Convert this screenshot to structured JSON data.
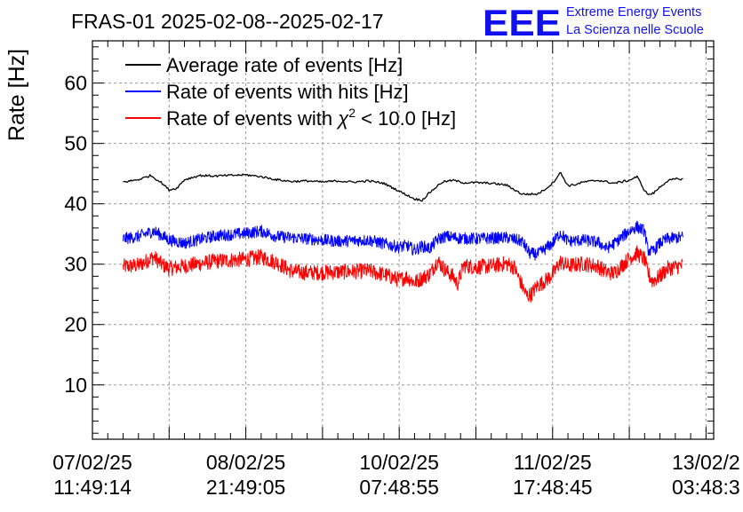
{
  "chart_data": {
    "type": "line",
    "title": "FRAS-01 2025-02-08--2025-02-17",
    "xlabel": "",
    "ylabel": "Rate [Hz]",
    "ylim": [
      1,
      67
    ],
    "y_ticks": [
      10,
      20,
      30,
      40,
      50,
      60
    ],
    "x_ticks": [
      {
        "date": "07/02/25",
        "time": "11:49:14"
      },
      {
        "date": "08/02/25",
        "time": "21:49:05"
      },
      {
        "date": "10/02/25",
        "time": "07:48:55"
      },
      {
        "date": "11/02/25",
        "time": "17:48:45"
      },
      {
        "date": "13/02/2",
        "time": "03:48:3"
      }
    ],
    "xlim": [
      0,
      4.05
    ],
    "grid": true,
    "legend": {
      "placement": "top-left",
      "entries": [
        {
          "label": "Average rate of events [Hz]",
          "color": "#000000"
        },
        {
          "label_prefix": "Rate of events with hits [Hz]",
          "color": "#0000ff"
        },
        {
          "label_prefix": "Rate of events with ",
          "chi": "χ",
          "sup": "2",
          "label_suffix": " < 10.0 [Hz]",
          "color": "#ff0000"
        }
      ]
    },
    "series": [
      {
        "name": "Average rate of events [Hz]",
        "color": "#000000",
        "noise": 0,
        "x": [
          0.2,
          0.3,
          0.38,
          0.45,
          0.5,
          0.55,
          0.6,
          0.7,
          0.8,
          1.0,
          1.1,
          1.2,
          1.3,
          1.4,
          1.5,
          1.6,
          1.7,
          1.8,
          1.9,
          2.0,
          2.1,
          2.15,
          2.2,
          2.28,
          2.35,
          2.42,
          2.5,
          2.6,
          2.7,
          2.8,
          2.9,
          2.95,
          3.0,
          3.05,
          3.1,
          3.15,
          3.2,
          3.3,
          3.4,
          3.5,
          3.55,
          3.58,
          3.6,
          3.63,
          3.66,
          3.7,
          3.75,
          3.8,
          3.85
        ],
        "y": [
          43.6,
          44.0,
          44.7,
          43.5,
          42.3,
          42.6,
          44.0,
          44.7,
          44.6,
          44.8,
          44.5,
          44.0,
          43.7,
          43.8,
          43.6,
          43.8,
          43.6,
          43.8,
          43.4,
          42.1,
          40.8,
          40.6,
          41.9,
          43.6,
          43.9,
          43.5,
          43.5,
          43.4,
          43.1,
          41.6,
          41.6,
          42.4,
          43.4,
          45.2,
          43.0,
          43.2,
          43.6,
          43.9,
          43.4,
          43.9,
          44.5,
          43.2,
          42.1,
          41.5,
          41.8,
          42.8,
          43.8,
          44.1,
          44.1
        ]
      },
      {
        "name": "Rate of events with hits [Hz]",
        "color": "#0000ff",
        "noise": 1.0,
        "x": [
          0.2,
          0.3,
          0.4,
          0.5,
          0.6,
          0.8,
          1.0,
          1.1,
          1.2,
          1.4,
          1.6,
          1.8,
          2.0,
          2.05,
          2.1,
          2.15,
          2.2,
          2.25,
          2.3,
          2.4,
          2.5,
          2.6,
          2.7,
          2.8,
          2.85,
          2.9,
          2.95,
          3.0,
          3.05,
          3.1,
          3.2,
          3.3,
          3.35,
          3.4,
          3.5,
          3.55,
          3.6,
          3.62,
          3.65,
          3.7,
          3.75,
          3.85
        ],
        "y": [
          34.2,
          34.6,
          35.5,
          34.0,
          33.5,
          34.7,
          35.1,
          35.5,
          34.6,
          34.2,
          33.8,
          34.0,
          32.8,
          33.1,
          32.3,
          33.0,
          32.6,
          34.1,
          34.6,
          34.3,
          34.2,
          34.3,
          34.4,
          33.8,
          31.8,
          31.6,
          32.5,
          33.5,
          35.2,
          33.8,
          34.0,
          33.6,
          32.6,
          33.4,
          35.5,
          36.2,
          35.5,
          32.4,
          32.0,
          33.5,
          34.2,
          34.5
        ]
      },
      {
        "name": "Rate of events with chi2 < 10.0 [Hz]",
        "color": "#ff0000",
        "noise": 1.3,
        "x": [
          0.2,
          0.3,
          0.4,
          0.45,
          0.5,
          0.6,
          0.8,
          1.0,
          1.1,
          1.2,
          1.3,
          1.4,
          1.6,
          1.8,
          1.9,
          2.0,
          2.05,
          2.1,
          2.15,
          2.2,
          2.25,
          2.3,
          2.35,
          2.38,
          2.42,
          2.5,
          2.6,
          2.7,
          2.75,
          2.8,
          2.83,
          2.86,
          2.9,
          2.95,
          3.0,
          3.05,
          3.1,
          3.2,
          3.3,
          3.35,
          3.4,
          3.5,
          3.55,
          3.6,
          3.62,
          3.65,
          3.7,
          3.75,
          3.85
        ],
        "y": [
          29.6,
          29.8,
          31.2,
          30.0,
          29.3,
          29.7,
          30.5,
          30.8,
          31.2,
          30.3,
          28.8,
          28.6,
          28.7,
          28.9,
          28.3,
          27.4,
          27.9,
          27.0,
          27.7,
          28.4,
          30.6,
          29.0,
          28.0,
          26.7,
          29.8,
          29.5,
          29.7,
          30.1,
          29.5,
          26.5,
          24.8,
          25.0,
          26.4,
          27.2,
          28.3,
          30.4,
          29.7,
          30.1,
          29.6,
          28.7,
          28.5,
          31.0,
          31.8,
          30.8,
          28.6,
          27.2,
          28.0,
          29.3,
          29.8
        ]
      }
    ]
  },
  "logo": {
    "text": "EEE",
    "line1": "Extreme Energy Events",
    "line2": "La Scienza nelle Scuole",
    "color": "#1010ee"
  },
  "colors": {
    "axis": "#000000",
    "grid": "#9a9a9a"
  }
}
